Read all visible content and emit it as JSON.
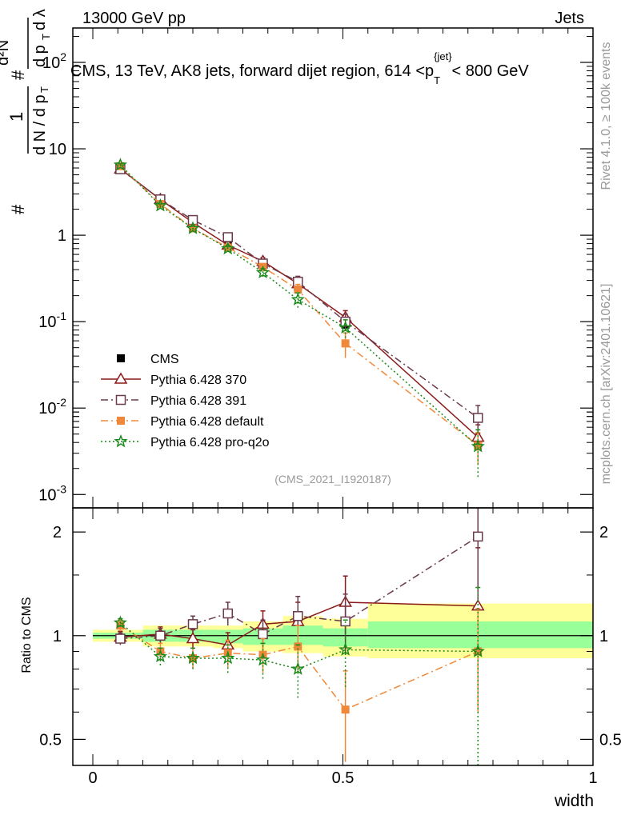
{
  "header": {
    "left": "13000 GeV pp",
    "right": "Jets"
  },
  "side_labels": {
    "rivet": "Rivet 4.1.0, ≥ 100k events",
    "mcplots": "mcplots.cern.ch [arXiv:2401.10621]"
  },
  "chart_data": [
    {
      "type": "line",
      "panel": "main",
      "title": "CMS, 13 TeV, AK8 jets, forward dijet region, 614 <p_T^{jet}< 800 GeV",
      "title_parts": {
        "main": "CMS, 13 TeV, AK8 jets, forward dijet region, 614 <p",
        "sub": "T",
        "sup": "{jet}",
        "tail": "< 800 GeV"
      },
      "ylabel_parts": {
        "hash": "#",
        "one": "1",
        "denominator": "d N / d p",
        "sub": "T",
        "numer_top": "d²N",
        "numer_bottom": "d p",
        "numer_sub": "T",
        "lambda": "d λ"
      },
      "yscale": "log",
      "ylim": [
        0.0007,
        250
      ],
      "xlim": [
        -0.04,
        1.0
      ],
      "yticks": [
        0.001,
        0.01,
        0.1,
        1,
        10,
        100
      ],
      "ytick_labels": {
        "base": [
          "10",
          "10",
          "10",
          "1",
          "10",
          "10"
        ],
        "exp": [
          "-3",
          "-2",
          "-1",
          "",
          "",
          "2"
        ]
      },
      "watermark": "(CMS_2021_I1920187)",
      "legend_position": "lower-left",
      "series": [
        {
          "name": "CMS",
          "color": "#000000",
          "marker": "filled-square",
          "line": "none",
          "x": [
            0.055,
            0.135,
            0.2,
            0.27,
            0.34,
            0.41,
            0.505,
            0.77
          ],
          "y": [
            5.9,
            2.55,
            1.43,
            0.82,
            0.47,
            0.255,
            0.092,
            0.0039
          ],
          "err": [
            0.25,
            0.1,
            0.08,
            0.05,
            0.035,
            0.025,
            0.012,
            0.0012
          ]
        },
        {
          "name": "Pythia 6.428 370",
          "color": "#8b1a1a",
          "marker": "open-triangle",
          "line": "solid",
          "x": [
            0.055,
            0.135,
            0.2,
            0.27,
            0.34,
            0.41,
            0.505,
            0.77
          ],
          "y": [
            5.85,
            2.6,
            1.4,
            0.77,
            0.5,
            0.275,
            0.112,
            0.0046
          ],
          "err": [
            0.2,
            0.1,
            0.08,
            0.06,
            0.05,
            0.04,
            0.022,
            0.0018
          ]
        },
        {
          "name": "Pythia 6.428 391",
          "color": "#6b3a4d",
          "marker": "open-square",
          "line": "dashdot",
          "x": [
            0.055,
            0.135,
            0.2,
            0.27,
            0.34,
            0.41,
            0.505,
            0.77
          ],
          "y": [
            5.8,
            2.6,
            1.5,
            0.95,
            0.47,
            0.29,
            0.1,
            0.0077
          ],
          "err": [
            0.2,
            0.1,
            0.08,
            0.07,
            0.05,
            0.045,
            0.022,
            0.003
          ]
        },
        {
          "name": "Pythia 6.428 default",
          "color": "#f0883a",
          "marker": "filled-square",
          "line": "dashdot",
          "x": [
            0.055,
            0.135,
            0.2,
            0.27,
            0.34,
            0.41,
            0.505,
            0.77
          ],
          "y": [
            6.3,
            2.3,
            1.2,
            0.72,
            0.43,
            0.235,
            0.056,
            0.0037
          ],
          "err": [
            0.2,
            0.1,
            0.08,
            0.05,
            0.04,
            0.035,
            0.018,
            0.0015
          ]
        },
        {
          "name": "Pythia 6.428 pro-q2o",
          "color": "#1a8a1a",
          "marker": "star",
          "line": "dotted",
          "x": [
            0.055,
            0.135,
            0.2,
            0.27,
            0.34,
            0.41,
            0.505,
            0.77
          ],
          "y": [
            6.5,
            2.2,
            1.2,
            0.7,
            0.37,
            0.18,
            0.085,
            0.0036
          ],
          "err": [
            0.2,
            0.1,
            0.08,
            0.06,
            0.04,
            0.035,
            0.02,
            0.002
          ]
        }
      ]
    },
    {
      "type": "line",
      "panel": "ratio",
      "ylabel": "Ratio to CMS",
      "xlabel": "width",
      "yscale": "log",
      "ylim": [
        0.42,
        2.35
      ],
      "xlim": [
        -0.04,
        1.0
      ],
      "yticks": [
        0.5,
        1,
        2
      ],
      "ytick_labels": [
        "0.5",
        "1",
        "2"
      ],
      "xticks": [
        0,
        0.5,
        1
      ],
      "xtick_labels": [
        "0",
        "0.5",
        "1"
      ],
      "bands": [
        {
          "x0": 0.0,
          "x1": 0.1,
          "yellow": [
            0.96,
            1.04
          ],
          "green": [
            0.98,
            1.02
          ]
        },
        {
          "x0": 0.1,
          "x1": 0.17,
          "yellow": [
            0.93,
            1.07
          ],
          "green": [
            0.96,
            1.04
          ]
        },
        {
          "x0": 0.17,
          "x1": 0.24,
          "yellow": [
            0.93,
            1.07
          ],
          "green": [
            0.96,
            1.04
          ]
        },
        {
          "x0": 0.24,
          "x1": 0.3,
          "yellow": [
            0.92,
            1.07
          ],
          "green": [
            0.95,
            1.04
          ]
        },
        {
          "x0": 0.3,
          "x1": 0.38,
          "yellow": [
            0.9,
            1.1
          ],
          "green": [
            0.94,
            1.05
          ]
        },
        {
          "x0": 0.38,
          "x1": 0.46,
          "yellow": [
            0.89,
            1.14
          ],
          "green": [
            0.94,
            1.07
          ]
        },
        {
          "x0": 0.46,
          "x1": 0.55,
          "yellow": [
            0.87,
            1.12
          ],
          "green": [
            0.93,
            1.05
          ]
        },
        {
          "x0": 0.55,
          "x1": 1.0,
          "yellow": [
            0.86,
            1.24
          ],
          "green": [
            0.92,
            1.1
          ]
        }
      ],
      "series": [
        {
          "name": "Pythia 6.428 370",
          "color": "#8b1a1a",
          "marker": "open-triangle",
          "line": "solid",
          "x": [
            0.055,
            0.135,
            0.2,
            0.27,
            0.34,
            0.41,
            0.505,
            0.77
          ],
          "y": [
            0.99,
            1.01,
            0.98,
            0.94,
            1.08,
            1.1,
            1.25,
            1.22
          ],
          "err": [
            0.04,
            0.05,
            0.06,
            0.08,
            0.1,
            0.15,
            0.24,
            0.58
          ]
        },
        {
          "name": "Pythia 6.428 391",
          "color": "#6b3a4d",
          "marker": "open-square",
          "line": "dashdot",
          "x": [
            0.055,
            0.135,
            0.2,
            0.27,
            0.34,
            0.41,
            0.505,
            0.77
          ],
          "y": [
            0.98,
            1.0,
            1.08,
            1.16,
            1.01,
            1.14,
            1.1,
            1.94
          ],
          "err": [
            0.04,
            0.05,
            0.06,
            0.09,
            0.1,
            0.16,
            0.22,
            0.68
          ]
        },
        {
          "name": "Pythia 6.428 default",
          "color": "#f0883a",
          "marker": "filled-square",
          "line": "dashdot",
          "x": [
            0.055,
            0.135,
            0.2,
            0.27,
            0.34,
            0.41,
            0.505,
            0.77
          ],
          "y": [
            1.07,
            0.9,
            0.86,
            0.89,
            0.88,
            0.93,
            0.61,
            0.9
          ],
          "err": [
            0.04,
            0.05,
            0.06,
            0.08,
            0.1,
            0.14,
            0.18,
            0.3
          ]
        },
        {
          "name": "Pythia 6.428 pro-q2o",
          "color": "#1a8a1a",
          "marker": "star",
          "line": "dotted",
          "x": [
            0.055,
            0.135,
            0.2,
            0.27,
            0.34,
            0.41,
            0.505,
            0.77
          ],
          "y": [
            1.09,
            0.87,
            0.86,
            0.86,
            0.85,
            0.8,
            0.91,
            0.9
          ],
          "err": [
            0.03,
            0.05,
            0.06,
            0.08,
            0.1,
            0.14,
            0.2,
            0.48
          ]
        }
      ]
    }
  ]
}
